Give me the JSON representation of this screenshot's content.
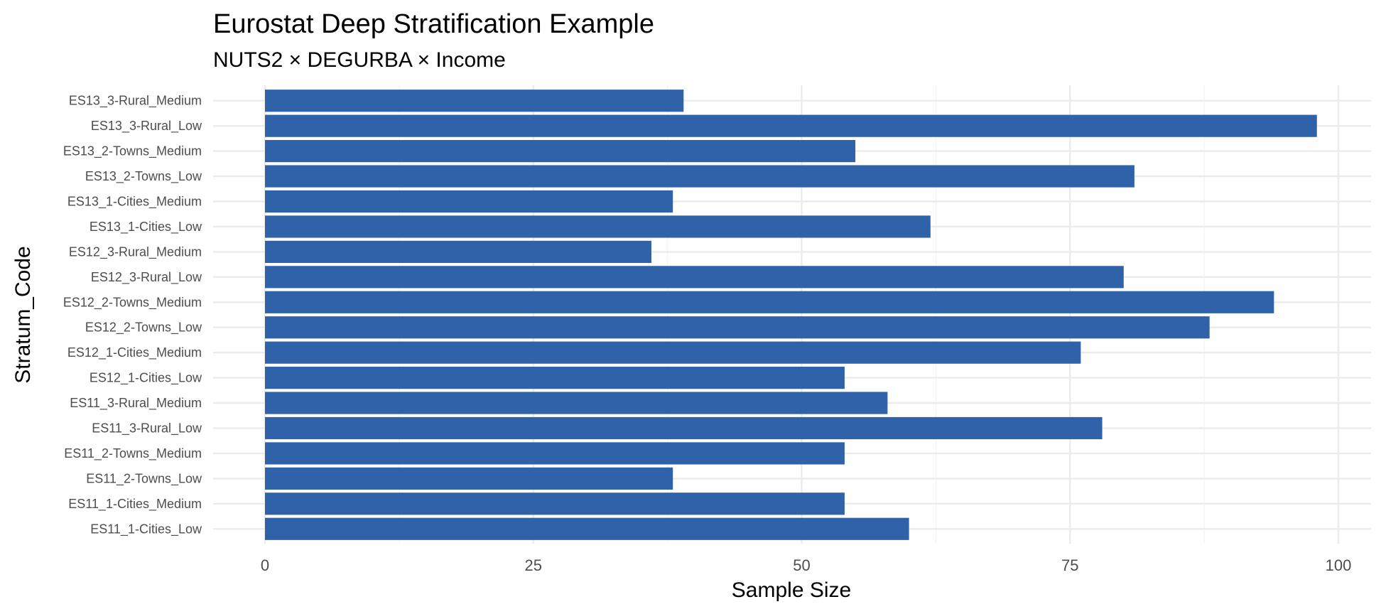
{
  "chart_data": {
    "type": "bar",
    "orientation": "horizontal",
    "title": "Eurostat Deep Stratification Example",
    "subtitle": "NUTS2 × DEGURBA × Income",
    "xlabel": "Sample Size",
    "ylabel": "Stratum_Code",
    "xlim": [
      0,
      100
    ],
    "xticks": [
      0,
      25,
      50,
      75,
      100
    ],
    "grid": true,
    "bar_color": "#2f62a8",
    "categories": [
      "ES11_1-Cities_Low",
      "ES11_1-Cities_Medium",
      "ES11_2-Towns_Low",
      "ES11_2-Towns_Medium",
      "ES11_3-Rural_Low",
      "ES11_3-Rural_Medium",
      "ES12_1-Cities_Low",
      "ES12_1-Cities_Medium",
      "ES12_2-Towns_Low",
      "ES12_2-Towns_Medium",
      "ES12_3-Rural_Low",
      "ES12_3-Rural_Medium",
      "ES13_1-Cities_Low",
      "ES13_1-Cities_Medium",
      "ES13_2-Towns_Low",
      "ES13_2-Towns_Medium",
      "ES13_3-Rural_Low",
      "ES13_3-Rural_Medium"
    ],
    "values": [
      60,
      54,
      38,
      54,
      78,
      58,
      54,
      76,
      88,
      94,
      80,
      36,
      62,
      38,
      81,
      55,
      98,
      39
    ]
  }
}
